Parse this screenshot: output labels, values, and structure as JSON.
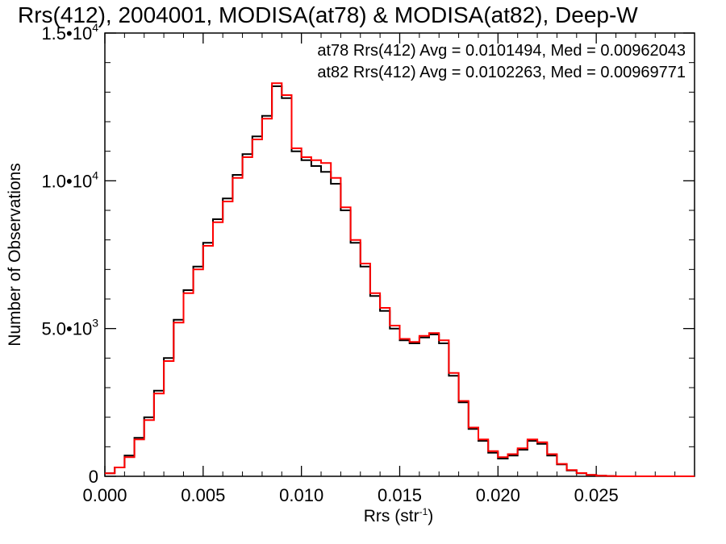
{
  "chart_data": {
    "type": "line",
    "title": "Rrs(412), 2004001, MODISA(at78) & MODISA(at82), Deep-W",
    "xlabel_main": "Rrs (str",
    "xlabel_sup": "-1",
    "xlabel_close": ")",
    "ylabel": "Number of Observations",
    "xlim": [
      0.0,
      0.03
    ],
    "ylim": [
      0,
      15000
    ],
    "x_ticks": [
      {
        "value": 0.0,
        "label": "0.000"
      },
      {
        "value": 0.005,
        "label": "0.005"
      },
      {
        "value": 0.01,
        "label": "0.010"
      },
      {
        "value": 0.015,
        "label": "0.015"
      },
      {
        "value": 0.02,
        "label": "0.020"
      },
      {
        "value": 0.025,
        "label": "0.025"
      }
    ],
    "y_ticks": [
      {
        "value": 0,
        "base": "0",
        "exp": ""
      },
      {
        "value": 5000,
        "base": "5.0•10",
        "exp": "3"
      },
      {
        "value": 10000,
        "base": "1.0•10",
        "exp": "4"
      },
      {
        "value": 15000,
        "base": "1.5•10",
        "exp": "4"
      }
    ],
    "grid": false,
    "legend_position": "top-right",
    "series": [
      {
        "name": "at78",
        "color": "#000000",
        "stats_label": "at78 Rrs(412) Avg = 0.0101494, Med = 0.00962043",
        "x": [
          0.0,
          0.0005,
          0.001,
          0.0015,
          0.002,
          0.0025,
          0.003,
          0.0035,
          0.004,
          0.0045,
          0.005,
          0.0055,
          0.006,
          0.0065,
          0.007,
          0.0075,
          0.008,
          0.0085,
          0.009,
          0.0095,
          0.01,
          0.0105,
          0.011,
          0.0115,
          0.012,
          0.0125,
          0.013,
          0.0135,
          0.014,
          0.0145,
          0.015,
          0.0155,
          0.016,
          0.0165,
          0.017,
          0.0175,
          0.018,
          0.0185,
          0.019,
          0.0195,
          0.02,
          0.0205,
          0.021,
          0.0215,
          0.022,
          0.0225,
          0.023,
          0.0235,
          0.024,
          0.0245,
          0.025,
          0.0255,
          0.026,
          0.027,
          0.028,
          0.029,
          0.03
        ],
        "values": [
          100,
          300,
          700,
          1300,
          2000,
          2900,
          4000,
          5300,
          6300,
          7100,
          7900,
          8700,
          9400,
          10200,
          10900,
          11500,
          12200,
          13200,
          12800,
          11000,
          10700,
          10500,
          10300,
          9900,
          9000,
          7900,
          7100,
          6100,
          5600,
          5000,
          4600,
          4500,
          4700,
          4800,
          4500,
          3400,
          2500,
          1600,
          1200,
          800,
          600,
          700,
          900,
          1200,
          1100,
          700,
          400,
          200,
          100,
          50,
          20,
          10,
          0,
          0,
          0,
          0,
          0
        ]
      },
      {
        "name": "at82",
        "color": "#ff0000",
        "stats_label": "at82 Rrs(412) Avg = 0.0102263, Med = 0.00969771",
        "x": [
          0.0,
          0.0005,
          0.001,
          0.0015,
          0.002,
          0.0025,
          0.003,
          0.0035,
          0.004,
          0.0045,
          0.005,
          0.0055,
          0.006,
          0.0065,
          0.007,
          0.0075,
          0.008,
          0.0085,
          0.009,
          0.0095,
          0.01,
          0.0105,
          0.011,
          0.0115,
          0.012,
          0.0125,
          0.013,
          0.0135,
          0.014,
          0.0145,
          0.015,
          0.0155,
          0.016,
          0.0165,
          0.017,
          0.0175,
          0.018,
          0.0185,
          0.019,
          0.0195,
          0.02,
          0.0205,
          0.021,
          0.0215,
          0.022,
          0.0225,
          0.023,
          0.0235,
          0.024,
          0.0245,
          0.025,
          0.0255,
          0.026,
          0.027,
          0.028,
          0.029,
          0.03
        ],
        "values": [
          100,
          300,
          650,
          1250,
          1900,
          2800,
          3900,
          5200,
          6200,
          7000,
          7800,
          8600,
          9300,
          10100,
          10800,
          11400,
          12100,
          13300,
          12900,
          11100,
          10800,
          10700,
          10600,
          10100,
          9100,
          8000,
          7200,
          6200,
          5700,
          5100,
          4650,
          4550,
          4750,
          4850,
          4600,
          3500,
          2550,
          1650,
          1250,
          850,
          650,
          750,
          950,
          1250,
          1150,
          750,
          420,
          210,
          110,
          50,
          20,
          10,
          0,
          0,
          0,
          0,
          0
        ]
      }
    ]
  }
}
